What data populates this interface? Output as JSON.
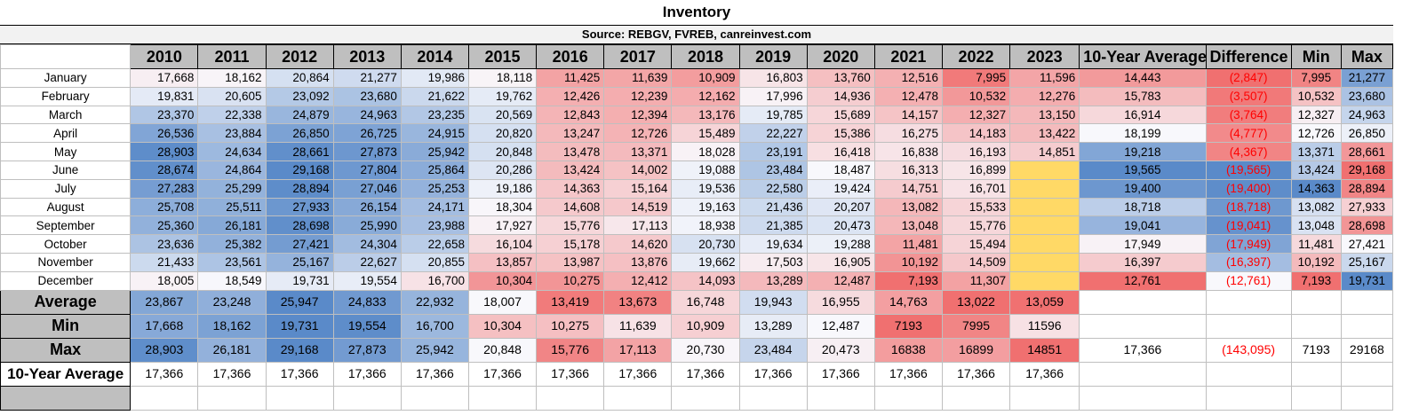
{
  "title": "Inventory",
  "source": "Source: REBGV, FVREB, canreinvest.com",
  "headers": [
    "2010",
    "2011",
    "2012",
    "2013",
    "2014",
    "2015",
    "2016",
    "2017",
    "2018",
    "2019",
    "2020",
    "2021",
    "2022",
    "2023",
    "10-Year Average",
    "Difference",
    "Min",
    "Max"
  ],
  "colors": {
    "blue_strong": "#5b87c9",
    "red_strong": "#f07a7a",
    "yellow_cell": "#ffd966",
    "header_gray": "#bfbfbf",
    "negative_text": "#ff0000"
  },
  "rows": [
    {
      "label": "January",
      "cells": [
        "17,668",
        "18,162",
        "20,864",
        "21,277",
        "19,986",
        "18,118",
        "11,425",
        "11,639",
        "10,909",
        "16,803",
        "13,760",
        "12,516",
        "7,995",
        "11,596",
        "14,443",
        "(2,847)",
        "7,995",
        "21,277"
      ]
    },
    {
      "label": "February",
      "cells": [
        "19,831",
        "20,605",
        "23,092",
        "23,680",
        "21,622",
        "19,762",
        "12,426",
        "12,239",
        "12,162",
        "17,996",
        "14,936",
        "12,478",
        "10,532",
        "12,276",
        "15,783",
        "(3,507)",
        "10,532",
        "23,680"
      ]
    },
    {
      "label": "March",
      "cells": [
        "23,370",
        "22,338",
        "24,879",
        "24,963",
        "23,235",
        "20,569",
        "12,843",
        "12,394",
        "13,176",
        "19,785",
        "15,689",
        "14,157",
        "12,327",
        "13,150",
        "16,914",
        "(3,764)",
        "12,327",
        "24,963"
      ]
    },
    {
      "label": "April",
      "cells": [
        "26,536",
        "23,884",
        "26,850",
        "26,725",
        "24,915",
        "20,820",
        "13,247",
        "12,726",
        "15,489",
        "22,227",
        "15,386",
        "16,275",
        "14,183",
        "13,422",
        "18,199",
        "(4,777)",
        "12,726",
        "26,850"
      ]
    },
    {
      "label": "May",
      "cells": [
        "28,903",
        "24,634",
        "28,661",
        "27,873",
        "25,942",
        "20,848",
        "13,478",
        "13,371",
        "18,028",
        "23,191",
        "16,418",
        "16,838",
        "16,193",
        "14,851",
        "19,218",
        "(4,367)",
        "13,371",
        "28,661"
      ]
    },
    {
      "label": "June",
      "cells": [
        "28,674",
        "24,864",
        "29,168",
        "27,804",
        "25,864",
        "20,286",
        "13,424",
        "14,002",
        "19,088",
        "23,484",
        "18,487",
        "16,313",
        "16,899",
        "",
        "19,565",
        "(19,565)",
        "13,424",
        "29,168"
      ]
    },
    {
      "label": "July",
      "cells": [
        "27,283",
        "25,299",
        "28,894",
        "27,046",
        "25,253",
        "19,186",
        "14,363",
        "15,164",
        "19,536",
        "22,580",
        "19,424",
        "14,751",
        "16,701",
        "",
        "19,400",
        "(19,400)",
        "14,363",
        "28,894"
      ]
    },
    {
      "label": "August",
      "cells": [
        "25,708",
        "25,511",
        "27,933",
        "26,154",
        "24,171",
        "18,304",
        "14,608",
        "14,519",
        "19,163",
        "21,436",
        "20,207",
        "13,082",
        "15,533",
        "",
        "18,718",
        "(18,718)",
        "13,082",
        "27,933"
      ]
    },
    {
      "label": "September",
      "cells": [
        "25,360",
        "26,181",
        "28,698",
        "25,990",
        "23,988",
        "17,927",
        "15,776",
        "17,113",
        "18,938",
        "21,385",
        "20,473",
        "13,048",
        "15,776",
        "",
        "19,041",
        "(19,041)",
        "13,048",
        "28,698"
      ]
    },
    {
      "label": "October",
      "cells": [
        "23,636",
        "25,382",
        "27,421",
        "24,304",
        "22,658",
        "16,104",
        "15,178",
        "14,620",
        "20,730",
        "19,634",
        "19,288",
        "11,481",
        "15,494",
        "",
        "17,949",
        "(17,949)",
        "11,481",
        "27,421"
      ]
    },
    {
      "label": "November",
      "cells": [
        "21,433",
        "23,561",
        "25,167",
        "22,627",
        "20,855",
        "13,857",
        "13,987",
        "13,876",
        "19,662",
        "17,503",
        "16,905",
        "10,192",
        "14,509",
        "",
        "16,397",
        "(16,397)",
        "10,192",
        "25,167"
      ]
    },
    {
      "label": "December",
      "cells": [
        "18,005",
        "18,549",
        "19,731",
        "19,554",
        "16,700",
        "10,304",
        "10,275",
        "12,412",
        "14,093",
        "13,289",
        "12,487",
        "7,193",
        "11,307",
        "",
        "12,761",
        "(12,761)",
        "7,193",
        "19,731"
      ]
    }
  ],
  "summary": [
    {
      "label": "Average",
      "cells": [
        "23,867",
        "23,248",
        "25,947",
        "24,833",
        "22,932",
        "18,007",
        "13,419",
        "13,673",
        "16,748",
        "19,943",
        "16,955",
        "14,763",
        "13,022",
        "13,059",
        "",
        "",
        "",
        ""
      ]
    },
    {
      "label": "Min",
      "cells": [
        "17,668",
        "18,162",
        "19,731",
        "19,554",
        "16,700",
        "10,304",
        "10,275",
        "11,639",
        "10,909",
        "13,289",
        "12,487",
        "7193",
        "7995",
        "11596",
        "",
        "",
        "",
        ""
      ]
    },
    {
      "label": "Max",
      "cells": [
        "28,903",
        "26,181",
        "29,168",
        "27,873",
        "25,942",
        "20,848",
        "15,776",
        "17,113",
        "20,730",
        "23,484",
        "20,473",
        "16838",
        "16899",
        "14851",
        "17,366",
        "(143,095)",
        "7193",
        "29168"
      ]
    },
    {
      "label": "10-Year Average",
      "cells": [
        "17,366",
        "17,366",
        "17,366",
        "17,366",
        "17,366",
        "17,366",
        "17,366",
        "17,366",
        "17,366",
        "17,366",
        "17,366",
        "17,366",
        "17,366",
        "17,366",
        "",
        "",
        "",
        ""
      ]
    }
  ]
}
